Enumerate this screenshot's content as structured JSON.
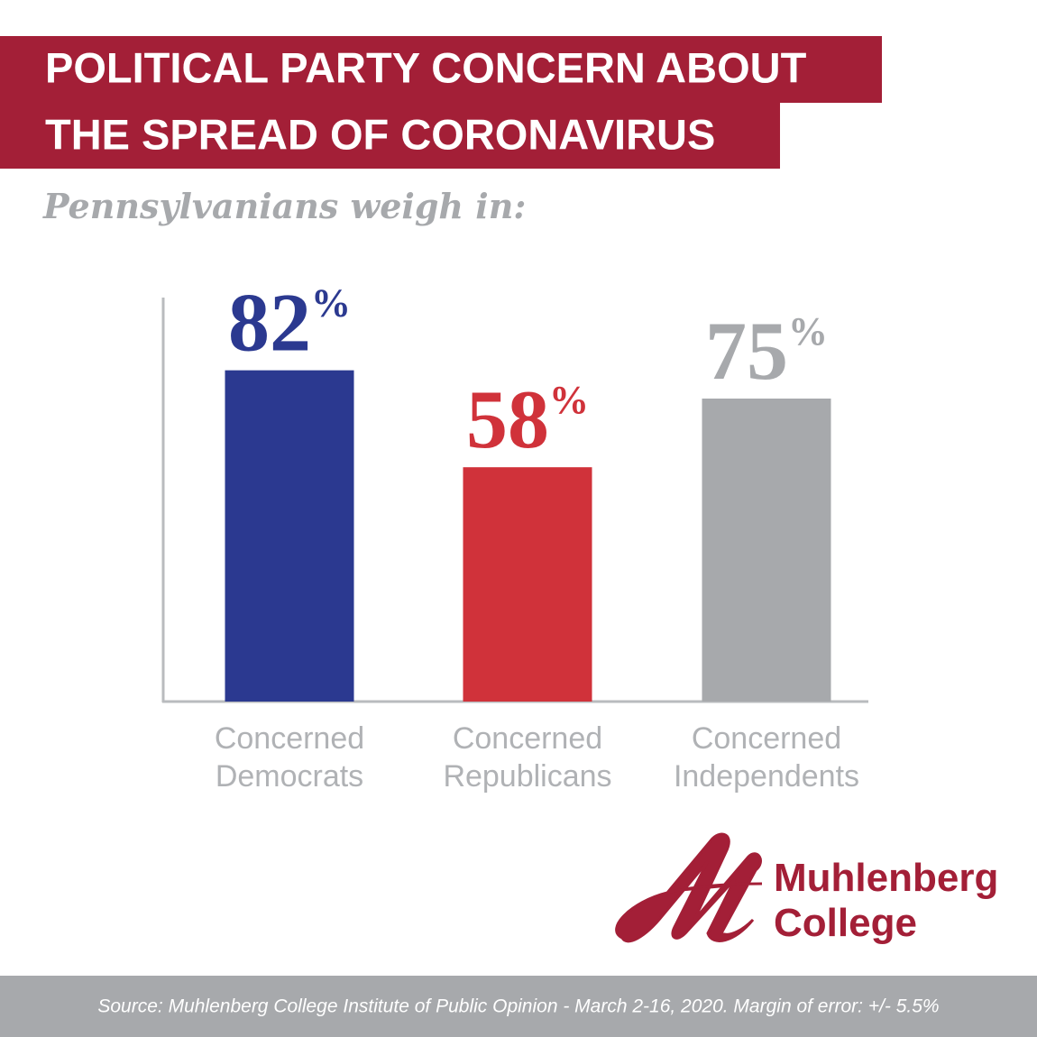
{
  "chart_data": {
    "type": "bar",
    "title": [
      "POLITICAL PARTY CONCERN ABOUT",
      "THE SPREAD OF CORONAVIRUS"
    ],
    "subtitle": "Pennsylvanians weigh in:",
    "categories": [
      "Concerned Democrats",
      "Concerned Republicans",
      "Concerned Independents"
    ],
    "values": [
      82,
      58,
      75
    ],
    "value_labels": [
      "82%",
      "58%",
      "75%"
    ],
    "colors": [
      "#2b3990",
      "#d0323a",
      "#a7a9ac"
    ],
    "ylim": [
      0,
      100
    ],
    "logo": [
      "Muhlenberg",
      "College"
    ],
    "source": "Source: Muhlenberg College Institute of Public Opinion - March 2-16, 2020. Margin of error: +/- 5.5%"
  }
}
